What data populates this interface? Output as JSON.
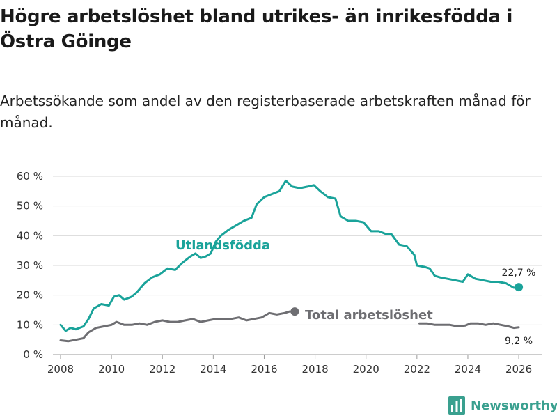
{
  "title": "Högre arbetslöshet bland utrikes- än inrikesfödda i Östra Göinge",
  "subtitle": "Arbetssökande som andel av den registerbaserade arbetskraften månad för månad.",
  "brand": {
    "name": "Newsworthy",
    "color": "#3aa08f"
  },
  "chart_data": {
    "type": "line",
    "xlim": [
      2007.7,
      2026.9
    ],
    "ylim": [
      0,
      60
    ],
    "x_ticks": [
      2008,
      2010,
      2012,
      2014,
      2016,
      2018,
      2020,
      2022,
      2024,
      2026
    ],
    "y_ticks": [
      0,
      10,
      20,
      30,
      40,
      50,
      60
    ],
    "x_tick_labels": [
      "2008",
      "2010",
      "2012",
      "2014",
      "2016",
      "2018",
      "2020",
      "2022",
      "2024",
      "2026"
    ],
    "y_tick_labels": [
      "0 %",
      "10 %",
      "20 %",
      "30 %",
      "40 %",
      "50 %",
      "60 %"
    ],
    "grid": "horizontal",
    "series": [
      {
        "name": "Utlandsfödda",
        "color": "#1aa39a",
        "end_label": "22,7 %",
        "points": [
          [
            2008.0,
            10.0
          ],
          [
            2008.2,
            8.0
          ],
          [
            2008.4,
            9.0
          ],
          [
            2008.6,
            8.5
          ],
          [
            2008.9,
            9.5
          ],
          [
            2009.1,
            12.0
          ],
          [
            2009.3,
            15.5
          ],
          [
            2009.6,
            17.0
          ],
          [
            2009.9,
            16.5
          ],
          [
            2010.1,
            19.5
          ],
          [
            2010.3,
            20.0
          ],
          [
            2010.5,
            18.5
          ],
          [
            2010.8,
            19.5
          ],
          [
            2011.0,
            21.0
          ],
          [
            2011.3,
            24.0
          ],
          [
            2011.6,
            26.0
          ],
          [
            2011.9,
            27.0
          ],
          [
            2012.2,
            29.0
          ],
          [
            2012.5,
            28.5
          ],
          [
            2012.8,
            31.0
          ],
          [
            2013.1,
            33.0
          ],
          [
            2013.3,
            34.0
          ],
          [
            2013.5,
            32.5
          ],
          [
            2013.7,
            33.0
          ],
          [
            2013.9,
            34.0
          ],
          [
            2014.1,
            38.0
          ],
          [
            2014.3,
            40.0
          ],
          [
            2014.6,
            42.0
          ],
          [
            2014.9,
            43.5
          ],
          [
            2015.2,
            45.0
          ],
          [
            2015.5,
            46.0
          ],
          [
            2015.7,
            50.5
          ],
          [
            2016.0,
            53.0
          ],
          [
            2016.3,
            54.0
          ],
          [
            2016.6,
            55.0
          ],
          [
            2016.85,
            58.5
          ],
          [
            2017.1,
            56.5
          ],
          [
            2017.4,
            56.0
          ],
          [
            2017.7,
            56.5
          ],
          [
            2017.95,
            57.0
          ],
          [
            2018.2,
            55.0
          ],
          [
            2018.5,
            53.0
          ],
          [
            2018.8,
            52.5
          ],
          [
            2019.0,
            46.5
          ],
          [
            2019.3,
            45.0
          ],
          [
            2019.6,
            45.0
          ],
          [
            2019.9,
            44.5
          ],
          [
            2020.2,
            41.5
          ],
          [
            2020.5,
            41.5
          ],
          [
            2020.8,
            40.5
          ],
          [
            2021.0,
            40.5
          ],
          [
            2021.3,
            37.0
          ],
          [
            2021.6,
            36.5
          ],
          [
            2021.9,
            33.5
          ],
          [
            2022.0,
            30.0
          ],
          [
            2022.3,
            29.5
          ],
          [
            2022.5,
            29.0
          ],
          [
            2022.7,
            26.5
          ],
          [
            2022.9,
            26.0
          ],
          [
            2023.2,
            25.5
          ],
          [
            2023.5,
            25.0
          ],
          [
            2023.8,
            24.5
          ],
          [
            2024.0,
            27.0
          ],
          [
            2024.3,
            25.5
          ],
          [
            2024.6,
            25.0
          ],
          [
            2024.9,
            24.5
          ],
          [
            2025.2,
            24.5
          ],
          [
            2025.5,
            24.0
          ],
          [
            2025.8,
            22.5
          ],
          [
            2026.0,
            22.7
          ]
        ]
      },
      {
        "name": "Total arbetslöshet",
        "color": "#6e6e72",
        "end_label": "9,2 %",
        "points": [
          [
            2008.0,
            4.8
          ],
          [
            2008.3,
            4.5
          ],
          [
            2008.6,
            5.0
          ],
          [
            2008.9,
            5.5
          ],
          [
            2009.1,
            7.5
          ],
          [
            2009.4,
            9.0
          ],
          [
            2009.7,
            9.5
          ],
          [
            2010.0,
            10.0
          ],
          [
            2010.2,
            11.0
          ],
          [
            2010.5,
            10.0
          ],
          [
            2010.8,
            10.0
          ],
          [
            2011.1,
            10.5
          ],
          [
            2011.4,
            10.0
          ],
          [
            2011.7,
            11.0
          ],
          [
            2012.0,
            11.5
          ],
          [
            2012.3,
            11.0
          ],
          [
            2012.6,
            11.0
          ],
          [
            2012.9,
            11.5
          ],
          [
            2013.2,
            12.0
          ],
          [
            2013.5,
            11.0
          ],
          [
            2013.8,
            11.5
          ],
          [
            2014.1,
            12.0
          ],
          [
            2014.4,
            12.0
          ],
          [
            2014.7,
            12.0
          ],
          [
            2015.0,
            12.5
          ],
          [
            2015.3,
            11.5
          ],
          [
            2015.6,
            12.0
          ],
          [
            2015.9,
            12.5
          ],
          [
            2016.2,
            14.0
          ],
          [
            2016.5,
            13.5
          ],
          [
            2016.8,
            14.0
          ],
          [
            2017.0,
            14.5
          ],
          [
            2017.2,
            14.5
          ]
        ]
      },
      {
        "name": "Total arbetslöshet (tail)",
        "color": "#6e6e72",
        "points": [
          [
            2022.1,
            10.5
          ],
          [
            2022.4,
            10.5
          ],
          [
            2022.7,
            10.0
          ],
          [
            2023.0,
            10.0
          ],
          [
            2023.3,
            10.0
          ],
          [
            2023.6,
            9.5
          ],
          [
            2023.9,
            9.8
          ],
          [
            2024.1,
            10.5
          ],
          [
            2024.4,
            10.5
          ],
          [
            2024.7,
            10.0
          ],
          [
            2025.0,
            10.5
          ],
          [
            2025.3,
            10.0
          ],
          [
            2025.6,
            9.5
          ],
          [
            2025.8,
            9.0
          ],
          [
            2026.0,
            9.2
          ]
        ]
      }
    ]
  }
}
